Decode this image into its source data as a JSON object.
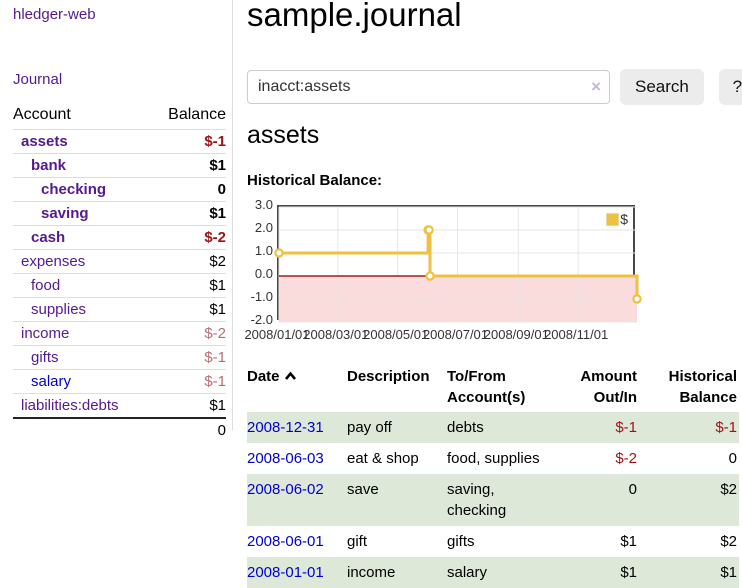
{
  "sidebar": {
    "app_title": "hledger-web",
    "journal_link": "Journal",
    "accounts_table": {
      "headers": {
        "account": "Account",
        "balance": "Balance"
      },
      "rows": [
        {
          "label": "assets",
          "balance": "$-1",
          "level": 1,
          "bold": true,
          "link": "purple",
          "balance_class": "neg-strong"
        },
        {
          "label": "bank",
          "balance": "$1",
          "level": 2,
          "bold": true,
          "link": "purple",
          "balance_class": "strong"
        },
        {
          "label": "checking",
          "balance": "0",
          "level": 3,
          "bold": true,
          "link": "purple",
          "balance_class": "strong"
        },
        {
          "label": "saving",
          "balance": "$1",
          "level": 3,
          "bold": true,
          "link": "purple",
          "balance_class": "strong"
        },
        {
          "label": "cash",
          "balance": "$-2",
          "level": 2,
          "bold": true,
          "link": "purple",
          "balance_class": "neg-strong"
        },
        {
          "label": "expenses",
          "balance": "$2",
          "level": 1,
          "bold": false,
          "link": "purple",
          "balance_class": "plain"
        },
        {
          "label": "food",
          "balance": "$1",
          "level": 2,
          "bold": false,
          "link": "purple",
          "balance_class": "plain"
        },
        {
          "label": "supplies",
          "balance": "$1",
          "level": 2,
          "bold": false,
          "link": "purple",
          "balance_class": "plain"
        },
        {
          "label": "income",
          "balance": "$-2",
          "level": 1,
          "bold": false,
          "link": "purple",
          "balance_class": "pale"
        },
        {
          "label": "gifts",
          "balance": "$-1",
          "level": 2,
          "bold": false,
          "link": "purple",
          "balance_class": "pale"
        },
        {
          "label": "salary",
          "balance": "$-1",
          "level": 2,
          "bold": false,
          "link": "blue",
          "balance_class": "pale"
        },
        {
          "label": "liabilities:debts",
          "balance": "$1",
          "level": 1,
          "bold": false,
          "link": "purple",
          "balance_class": "plain"
        }
      ],
      "total": "0"
    }
  },
  "main": {
    "title": "sample.journal",
    "search": {
      "value": "inacct:assets",
      "clear_icon": "×",
      "search_label": "Search",
      "help_label": "?"
    },
    "account_heading": "assets",
    "chart_label": "Historical Balance:"
  },
  "chart_data": {
    "type": "line",
    "step": true,
    "title": "Historical Balance:",
    "legend": {
      "position": "top-right",
      "entries": [
        "$"
      ]
    },
    "ylim": [
      -2,
      3
    ],
    "xlim_days": [
      0,
      365
    ],
    "grid": true,
    "series": [
      {
        "name": "$",
        "color": "#edc240",
        "points": [
          {
            "date": "2008-01-01",
            "day": 0,
            "value": 1
          },
          {
            "date": "2008-06-01",
            "day": 152,
            "value": 2
          },
          {
            "date": "2008-06-02",
            "day": 153,
            "value": 2
          },
          {
            "date": "2008-06-03",
            "day": 154,
            "value": 0
          },
          {
            "date": "2008-12-31",
            "day": 365,
            "value": -1
          }
        ]
      }
    ],
    "yticks": [
      {
        "label": "3.0",
        "value": 3
      },
      {
        "label": "2.0",
        "value": 2
      },
      {
        "label": "1.0",
        "value": 1
      },
      {
        "label": "0.0",
        "value": 0
      },
      {
        "label": "-1.0",
        "value": -1
      },
      {
        "label": "-2.0",
        "value": -2
      }
    ],
    "xticks": [
      {
        "label": "2008/01/01",
        "day": 0
      },
      {
        "label": "2008/03/01",
        "day": 60
      },
      {
        "label": "2008/05/01",
        "day": 121
      },
      {
        "label": "2008/07/01",
        "day": 182
      },
      {
        "label": "2008/09/01",
        "day": 244
      },
      {
        "label": "2008/11/01",
        "day": 305
      }
    ],
    "negative_region_color": "#fbdcdc",
    "zero_line_color": "#992222",
    "gridline_color": "#e6e6e6"
  },
  "register_table": {
    "headers": {
      "date": "Date",
      "description": "Description",
      "accounts": "To/From Account(s)",
      "amount": "Amount Out/In",
      "balance": "Historical Balance"
    },
    "rows": [
      {
        "date": "2008-12-31",
        "description": "pay off",
        "accounts": "debts",
        "amount": "$-1",
        "balance": "$-1",
        "stripe": true
      },
      {
        "date": "2008-06-03",
        "description": "eat & shop",
        "accounts": "food, supplies",
        "amount": "$-2",
        "balance": "0",
        "stripe": false
      },
      {
        "date": "2008-06-02",
        "description": "save",
        "accounts": "saving, checking",
        "amount": "0",
        "balance": "$2",
        "stripe": true
      },
      {
        "date": "2008-06-01",
        "description": "gift",
        "accounts": "gifts",
        "amount": "$1",
        "balance": "$2",
        "stripe": false
      },
      {
        "date": "2008-01-01",
        "description": "income",
        "accounts": "salary",
        "amount": "$1",
        "balance": "$1",
        "stripe": true
      }
    ]
  }
}
